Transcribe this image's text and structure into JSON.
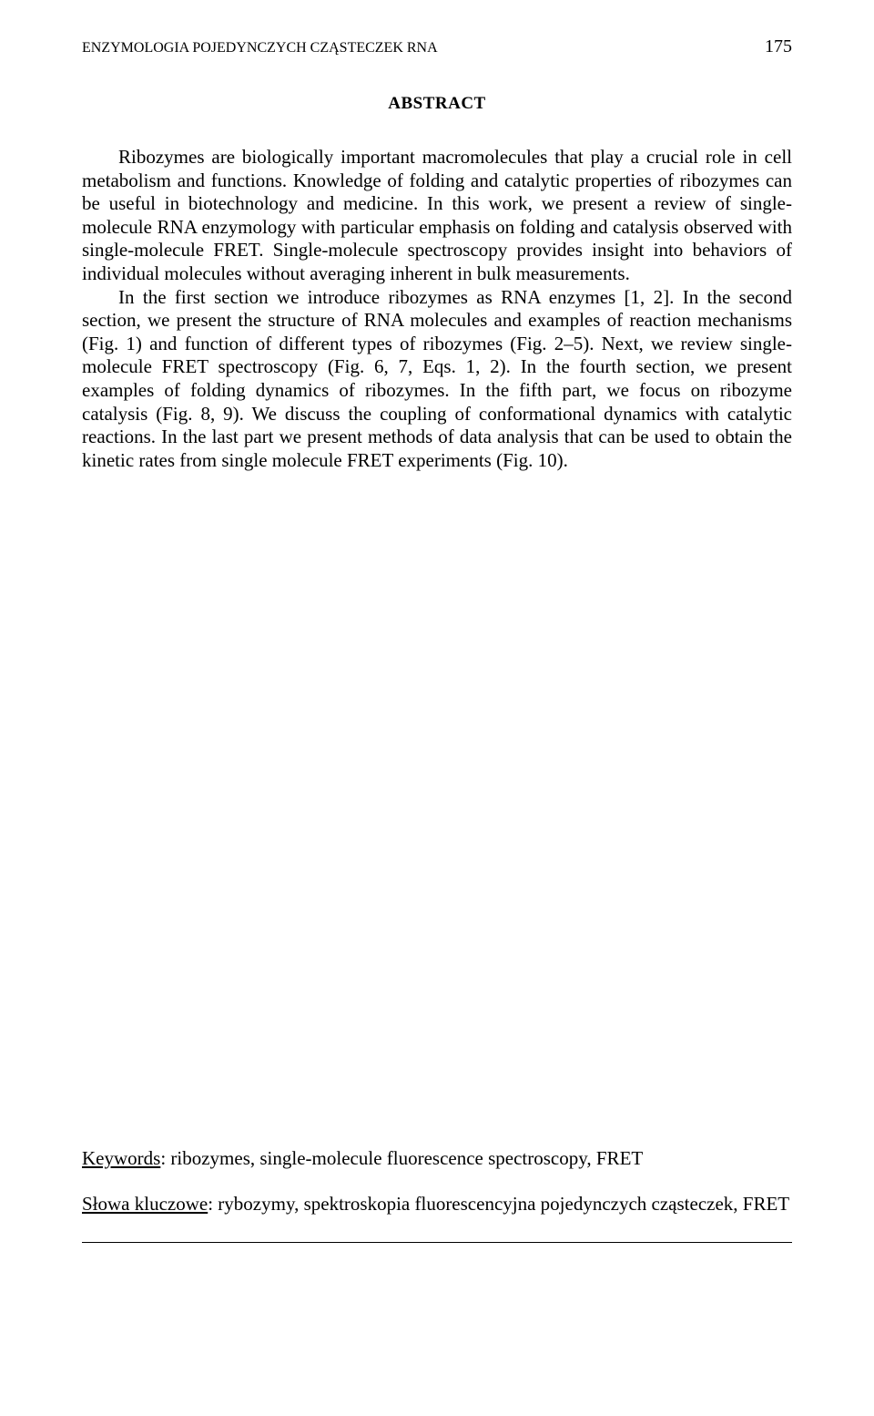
{
  "header": {
    "running_title": "ENZYMOLOGIA POJEDYNCZYCH CZĄSTECZEK RNA",
    "page_number": "175"
  },
  "abstract": {
    "title": "ABSTRACT",
    "p1": "Ribozymes are biologically important macromolecules that play a crucial role in cell metabolism and functions. Knowledge of folding and catalytic properties of ribozymes can be useful in biotechnology and medicine. In this work, we present a review of single-molecule RNA enzymology with particular emphasis on folding and catalysis observed with single-molecule FRET. Single-molecule spectroscopy provides insight into behaviors of individual molecules without averaging inherent in bulk measurements.",
    "p2": "In the first section we introduce ribozymes as RNA enzymes [1, 2]. In the second section, we present the structure of RNA molecules and examples of reaction mechanisms (Fig. 1) and function of different types of ribozymes (Fig. 2–5). Next, we review single-molecule FRET spectroscopy (Fig. 6, 7, Eqs. 1, 2). In the fourth section, we present examples of folding dynamics of ribozymes. In the fifth part, we focus on ribozyme catalysis (Fig. 8, 9). We discuss the coupling of conformational dynamics with catalytic reactions. In the last part we present methods of data analysis that can be used to obtain the kinetic rates from single molecule FRET experiments (Fig. 10)."
  },
  "keywords": {
    "label_en": "Keywords",
    "text_en": ": ribozymes, single-molecule fluorescence spectroscopy, FRET",
    "label_pl": "Słowa kluczowe",
    "text_pl": ": rybozymy, spektroskopia fluorescencyjna pojedynczych cząsteczek, FRET"
  }
}
